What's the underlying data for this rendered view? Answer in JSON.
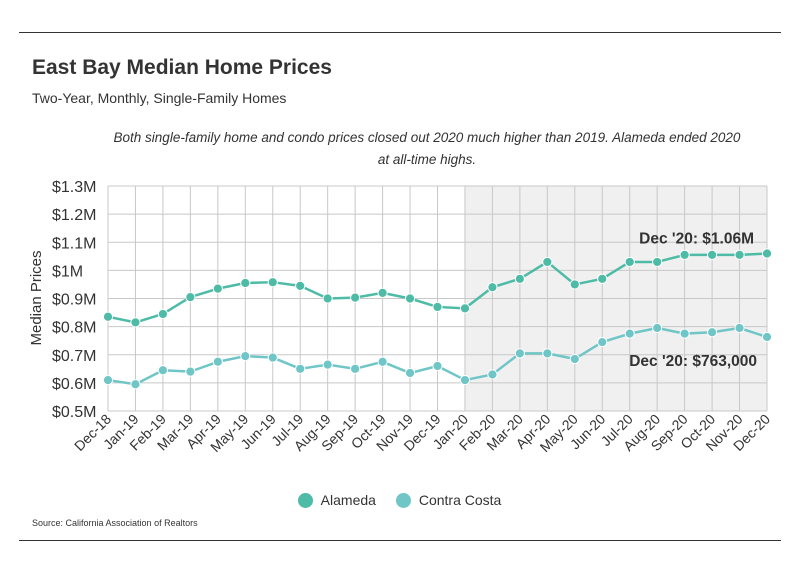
{
  "header": {
    "title": "East Bay Median Home Prices",
    "subtitle": "Two-Year, Monthly, Single-Family Homes",
    "note": "Both single-family home and condo prices closed out 2020 much higher than 2019. Alameda ended 2020 at all-time highs."
  },
  "footer": {
    "source": "Source:  California Association of Realtors"
  },
  "colors": {
    "alameda": "#4dbba5",
    "contra_costa": "#70c6c7",
    "shade": "#f0f0f0",
    "grid": "#c8c8c8"
  },
  "chart_data": {
    "type": "line",
    "title": "East Bay Median Home Prices",
    "ylabel": "Median Prices",
    "xlabel": "",
    "ylim": [
      500000,
      1300000
    ],
    "yticks": [
      500000,
      600000,
      700000,
      800000,
      900000,
      1000000,
      1100000,
      1200000,
      1300000
    ],
    "ytick_labels": [
      "$0.5M",
      "$0.6M",
      "$0.7M",
      "$0.8M",
      "$0.9M",
      "$1M",
      "$1.1M",
      "$1.2M",
      "$1.3M"
    ],
    "grid": true,
    "shaded_from": "Jan-20",
    "legend_position": "bottom",
    "categories": [
      "Dec-18",
      "Jan-19",
      "Feb-19",
      "Mar-19",
      "Apr-19",
      "May-19",
      "Jun-19",
      "Jul-19",
      "Aug-19",
      "Sep-19",
      "Oct-19",
      "Nov-19",
      "Dec-19",
      "Jan-20",
      "Feb-20",
      "Mar-20",
      "Apr-20",
      "May-20",
      "Jun-20",
      "Jul-20",
      "Aug-20",
      "Sep-20",
      "Oct-20",
      "Nov-20",
      "Dec-20"
    ],
    "series": [
      {
        "name": "Alameda",
        "values": [
          835000,
          815000,
          845000,
          905000,
          935000,
          955000,
          958000,
          945000,
          900000,
          903000,
          920000,
          900000,
          870000,
          865000,
          940000,
          970000,
          1030000,
          950000,
          970000,
          1030000,
          1030000,
          1055000,
          1055000,
          1055000,
          1060000
        ],
        "annotation": "Dec '20: $1.06M"
      },
      {
        "name": "Contra Costa",
        "values": [
          610000,
          595000,
          645000,
          640000,
          675000,
          695000,
          690000,
          650000,
          665000,
          650000,
          675000,
          635000,
          660000,
          610000,
          630000,
          705000,
          705000,
          685000,
          745000,
          775000,
          795000,
          775000,
          780000,
          795000,
          763000
        ],
        "annotation": "Dec '20: $763,000"
      }
    ]
  }
}
